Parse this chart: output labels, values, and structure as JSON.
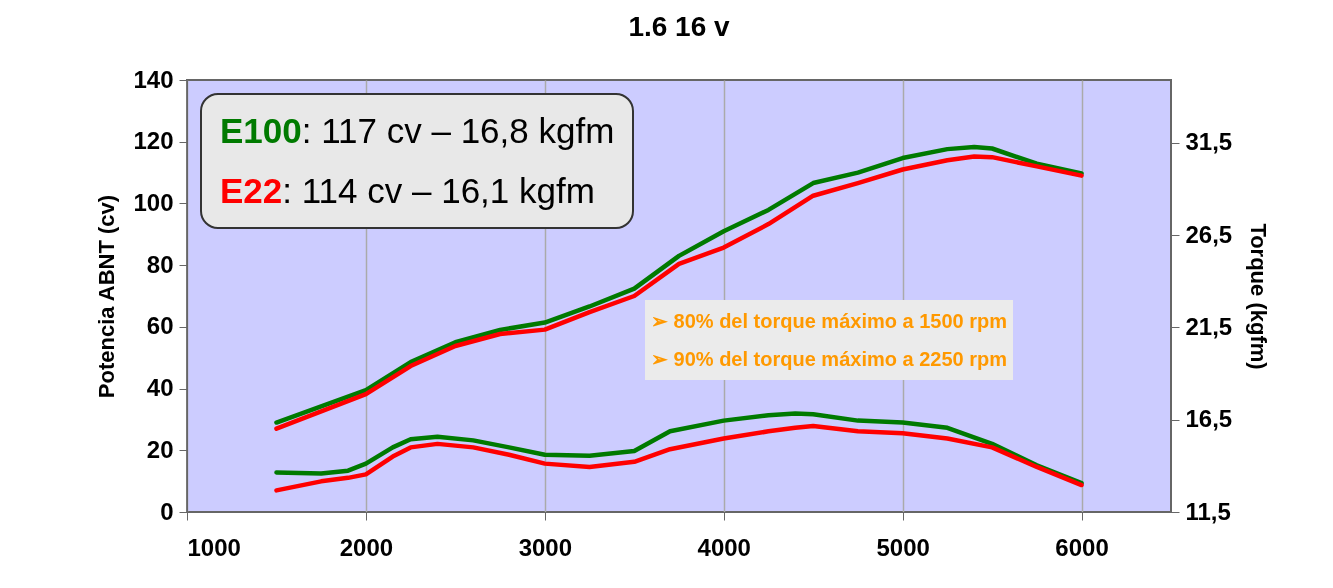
{
  "chart_data": {
    "type": "line",
    "title": "1.6 16 v",
    "ylabel": "Potencia ABNT (cv)",
    "y2label": "Torque (kgfm)",
    "xlim": [
      1000,
      6500
    ],
    "xticks": [
      1000,
      2000,
      3000,
      4000,
      5000,
      6000
    ],
    "ylim": [
      0,
      140
    ],
    "yticks": [
      0,
      20,
      40,
      60,
      80,
      100,
      120,
      140
    ],
    "y2lim": [
      11.5,
      34.9
    ],
    "y2ticks": [
      {
        "value": 11.5,
        "label": "11,5"
      },
      {
        "value": 16.5,
        "label": "16,5"
      },
      {
        "value": 21.5,
        "label": "21,5"
      },
      {
        "value": 26.5,
        "label": "26,5"
      },
      {
        "value": 31.5,
        "label": "31,5"
      }
    ],
    "grid": "x",
    "legend": "top left",
    "annotations": [
      ": 117 cv – 16,8 kgfm",
      ": 114 cv – 16,1 kgfm",
      "➢ 80% del torque máximo a 1500 rpm",
      "➢ 90% del torque máximo a 2250 rpm"
    ],
    "series": [
      {
        "name": "E100",
        "color": "#007a00",
        "x": [
          1500,
          2000,
          2250,
          2500,
          2750,
          3000,
          3250,
          3500,
          3750,
          4000,
          4250,
          4500,
          4750,
          5000,
          5250,
          5400,
          5500,
          5750,
          6000
        ],
        "values": [
          29,
          39.5,
          48.6,
          55,
          59,
          61.4,
          66.6,
          72.4,
          83,
          91,
          97.9,
          106.6,
          110,
          114.7,
          117.6,
          118.3,
          117.8,
          112.9,
          109.7
        ]
      },
      {
        "name": "E22",
        "color": "#ff0000",
        "x": [
          1500,
          2000,
          2250,
          2500,
          2750,
          3000,
          3250,
          3500,
          3750,
          4000,
          4250,
          4500,
          4750,
          5000,
          5250,
          5400,
          5500,
          5750,
          6000
        ],
        "values": [
          27,
          38.2,
          47.3,
          53.8,
          57.7,
          59.1,
          64.8,
          70,
          80.4,
          85.7,
          93.3,
          102.5,
          106.6,
          111,
          114,
          115.2,
          115,
          112,
          109
        ]
      },
      {
        "color": "#007a00",
        "axis": "y2",
        "x": [
          1500,
          1750,
          1900,
          2000,
          2150,
          2250,
          2400,
          2600,
          2800,
          3000,
          3250,
          3500,
          3700,
          4000,
          4250,
          4400,
          4500,
          4750,
          5000,
          5250,
          5500,
          5750,
          6000
        ],
        "values": [
          13.64,
          13.58,
          13.74,
          14.12,
          15.0,
          15.44,
          15.58,
          15.38,
          15.0,
          14.6,
          14.55,
          14.8,
          15.87,
          16.45,
          16.74,
          16.83,
          16.8,
          16.45,
          16.35,
          16.06,
          15.19,
          14.03,
          13.06
        ]
      },
      {
        "color": "#ff0000",
        "axis": "y2",
        "x": [
          1500,
          1750,
          1900,
          2000,
          2150,
          2250,
          2400,
          2600,
          2800,
          3000,
          3250,
          3500,
          3700,
          4000,
          4250,
          4400,
          4500,
          4750,
          5000,
          5250,
          5500,
          5750,
          6000
        ],
        "values": [
          12.67,
          13.16,
          13.35,
          13.54,
          14.5,
          15.0,
          15.19,
          15.0,
          14.6,
          14.12,
          13.94,
          14.22,
          14.9,
          15.48,
          15.87,
          16.06,
          16.16,
          15.87,
          15.77,
          15.48,
          15.0,
          13.94,
          12.96
        ]
      }
    ]
  }
}
